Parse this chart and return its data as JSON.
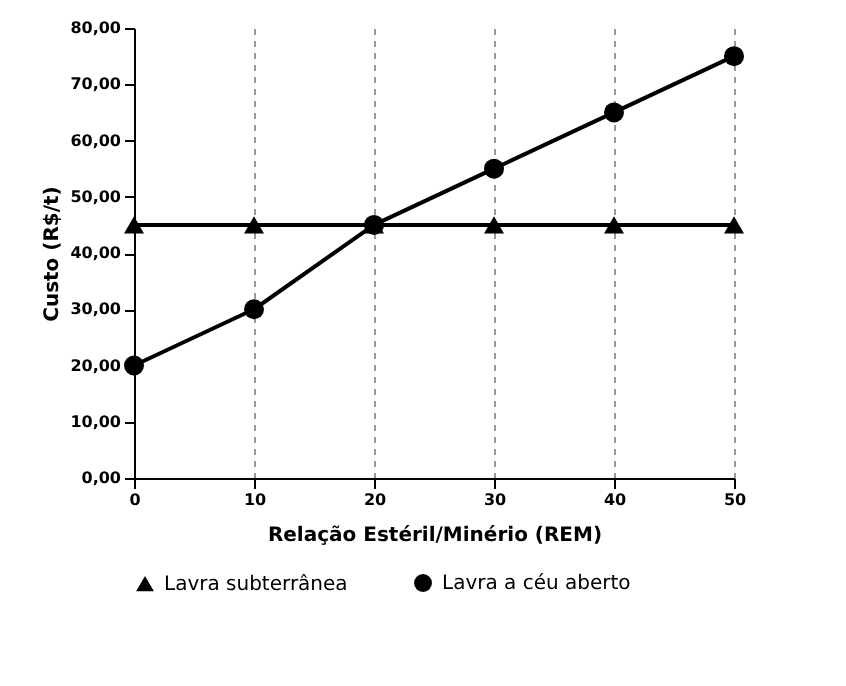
{
  "chart_data": {
    "type": "line",
    "xlabel": "Relação Estéril/Minério (REM)",
    "ylabel": "Custo (R$/t)",
    "x": [
      0,
      10,
      20,
      30,
      40,
      50
    ],
    "series": [
      {
        "name": "Lavra subterrânea",
        "color": "#000000",
        "marker": "triangle",
        "values": [
          45,
          45,
          45,
          45,
          45,
          45
        ]
      },
      {
        "name": "Lavra a céu aberto",
        "color": "#000000",
        "marker": "circle",
        "values": [
          20,
          30,
          45,
          55,
          65,
          75
        ]
      }
    ],
    "xlim": [
      0,
      50
    ],
    "xticks": [
      0,
      10,
      20,
      30,
      40,
      50
    ],
    "ylim": [
      0,
      80
    ],
    "yticks": [
      {
        "value": 0,
        "label": "0,00"
      },
      {
        "value": 10,
        "label": "10,00"
      },
      {
        "value": 20,
        "label": "20,00"
      },
      {
        "value": 30,
        "label": "30,00"
      },
      {
        "value": 40,
        "label": "40,00"
      },
      {
        "value": 50,
        "label": "50,00"
      },
      {
        "value": 60,
        "label": "60,00"
      },
      {
        "value": 70,
        "label": "70,00"
      },
      {
        "value": 80,
        "label": "80,00"
      }
    ],
    "grid": "x",
    "legend": "bottom",
    "line_style": "solid"
  }
}
